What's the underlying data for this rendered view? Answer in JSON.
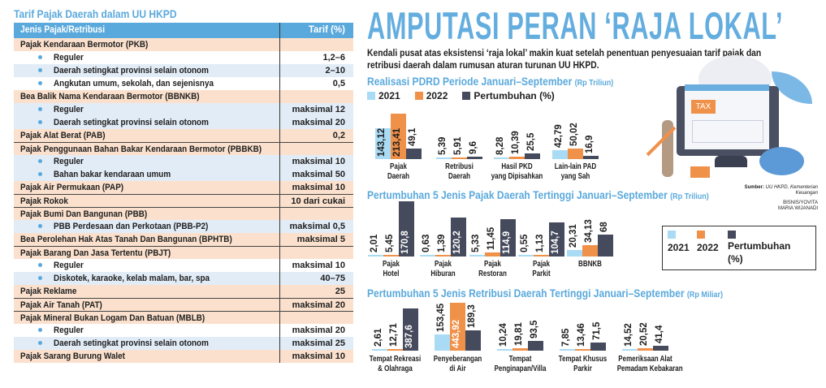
{
  "colors": {
    "y2021": "#a9dbf4",
    "y2022": "#f0914a",
    "growth": "#454a5c",
    "accent": "#5aa9dc",
    "main_row": "#fbe1cd",
    "alt_row": "#e2ecf7"
  },
  "table": {
    "title": "Tarif Pajak Daerah dalam UU HKPD",
    "headers": [
      "Jenis Pajak/Retribusi",
      "Tarif (%)"
    ],
    "rows": [
      {
        "type": "main",
        "label": "Pajak Kendaraan Bermotor (PKB)",
        "value": ""
      },
      {
        "type": "sub",
        "label": "Reguler",
        "value": "1,2–6"
      },
      {
        "type": "alt",
        "label": "Daerah setingkat provinsi selain otonom",
        "value": "2–10"
      },
      {
        "type": "sub",
        "label": "Angkutan umum, sekolah, dan sejenisnya",
        "value": "0,5"
      },
      {
        "type": "main",
        "label": "Bea Balik Nama Kendaraan Bermotor (BBNKB)",
        "value": ""
      },
      {
        "type": "alt",
        "label": "Reguler",
        "value": "maksimal 12"
      },
      {
        "type": "alt",
        "label": "Daerah setingkat provinsi selain otonom",
        "value": "maksimal 20"
      },
      {
        "type": "main",
        "label": "Pajak Alat Berat (PAB)",
        "value": "0,2"
      },
      {
        "type": "main",
        "label": "Pajak Penggunaan Bahan Bakar Kendaraan Bermotor (PBBKB)",
        "value": "",
        "sep": true
      },
      {
        "type": "alt",
        "label": "Reguler",
        "value": "maksimal 10"
      },
      {
        "type": "alt",
        "label": "Bahan bakar kendaraan umum",
        "value": "maksimal 50"
      },
      {
        "type": "main",
        "label": "Pajak Air Permukaan (PAP)",
        "value": "maksimal 10"
      },
      {
        "type": "main",
        "label": "Pajak Rokok",
        "value": "10 dari cukai",
        "sep": true
      },
      {
        "type": "main",
        "label": "Pajak Bumi Dan Bangunan (PBB)",
        "value": "",
        "sep": true
      },
      {
        "type": "alt",
        "label": "PBB Perdesaan dan Perkotaan (PBB-P2)",
        "value": "maksimal 0,5"
      },
      {
        "type": "main",
        "label": "Bea Perolehan Hak Atas Tanah Dan Bangunan (BPHTB)",
        "value": "maksimal 5"
      },
      {
        "type": "main",
        "label": "Pajak Barang Dan Jasa Tertentu (PBJT)",
        "value": "",
        "sep": true
      },
      {
        "type": "sub",
        "label": "Reguler",
        "value": "maksimal 10"
      },
      {
        "type": "alt",
        "label": "Diskotek, karaoke, kelab malam, bar, spa",
        "value": "40–75"
      },
      {
        "type": "main",
        "label": "Pajak Reklame",
        "value": "25"
      },
      {
        "type": "main",
        "label": "Pajak Air Tanah (PAT)",
        "value": "maksimal 20",
        "sep": true
      },
      {
        "type": "main",
        "label": "Pajak Mineral Bukan Logam Dan Batuan (MBLB)",
        "value": "",
        "sep": true
      },
      {
        "type": "sub",
        "label": "Reguler",
        "value": "maksimal 20"
      },
      {
        "type": "alt",
        "label": "Daerah setingkat provinsi selain otonom",
        "value": "maksimal 25"
      },
      {
        "type": "main",
        "label": "Pajak Sarang Burung Walet",
        "value": "maksimal 10"
      }
    ]
  },
  "headline": "AMPUTASI PERAN ‘RAJA LOKAL’",
  "lead": "Kendali pusat atas eksistensi ‘raja lokal’ makin kuat setelah penentuan penyesuaian tarif pajak dan retribusi daerah dalam rumusan aturan turunan UU HKPD.",
  "illustration": {
    "tax_label": "TAX"
  },
  "source": {
    "label": "Sumber:",
    "text": "UU HKPD, Kementerian Keuangan",
    "credit1": "BISNIS/YOVITA",
    "credit2": "MARIA WIJANADI"
  },
  "legend": {
    "y2021": "2021",
    "y2022": "2022",
    "growth1": "Pertumbuhan (%)",
    "growth2a": "Pertumbuhan",
    "growth2b": "(%)"
  },
  "chart_data": [
    {
      "type": "bar",
      "title": "Realisasi PDRD Periode Januari–September",
      "unit": "(Rp Triliun)",
      "legend_placement": "top-left",
      "categories": [
        "Pajak\nDaerah",
        "Retribusi\nDaerah",
        "Hasil PKD\nyang Dipisahkan",
        "Lain-lain PAD\nyang Sah"
      ],
      "series": [
        {
          "name": "2021",
          "values": [
            143.12,
            5.39,
            8.28,
            42.79
          ]
        },
        {
          "name": "2022",
          "values": [
            213.41,
            5.91,
            10.39,
            50.02
          ]
        },
        {
          "name": "Pertumbuhan (%)",
          "values": [
            49.1,
            9.6,
            25.5,
            16.9
          ]
        }
      ],
      "labels": [
        [
          "143,12",
          "213,41",
          "49,1"
        ],
        [
          "5,39",
          "5,91",
          "9,6"
        ],
        [
          "8,28",
          "10,39",
          "25,5"
        ],
        [
          "42,79",
          "50,02",
          "16,9"
        ]
      ]
    },
    {
      "type": "bar",
      "title": "Pertumbuhan 5 Jenis Pajak Daerah Tertinggi Januari–September",
      "unit": "(Rp Triliun)",
      "legend_placement": "right",
      "categories": [
        "Pajak\nHotel",
        "Pajak\nHiburan",
        "Pajak\nRestoran",
        "Pajak\nParkit",
        "BBNKB"
      ],
      "series": [
        {
          "name": "2021",
          "values": [
            2.01,
            0.63,
            5.33,
            0.55,
            20.31
          ]
        },
        {
          "name": "2022",
          "values": [
            5.45,
            1.39,
            11.45,
            1.13,
            34.13
          ]
        },
        {
          "name": "Pertumbuhan (%)",
          "values": [
            170.8,
            120.2,
            114.9,
            104.7,
            68
          ]
        }
      ],
      "labels": [
        [
          "2,01",
          "5,45",
          "170,8"
        ],
        [
          "0,63",
          "1,39",
          "120,2"
        ],
        [
          "5,33",
          "11,45",
          "114,9"
        ],
        [
          "0,55",
          "1,13",
          "104,7"
        ],
        [
          "20,31",
          "34,13",
          "68"
        ]
      ]
    },
    {
      "type": "bar",
      "title": "Pertumbuhan 5 Jenis Retribusi Daerah Tertinggi Januari–September",
      "unit": "(Rp Miliar)",
      "categories": [
        "Tempat Rekreasi\n& Olahraga",
        "Penyeberangan\ndi Air",
        "Tempat\nPenginapan/Villa",
        "Tempat Khusus\nParkir",
        "Pemeriksaan Alat\nPemadam Kebakaran"
      ],
      "series": [
        {
          "name": "2021",
          "values": [
            2.61,
            153.45,
            10.24,
            7.85,
            14.52
          ]
        },
        {
          "name": "2022",
          "values": [
            12.71,
            443.92,
            19.81,
            13.46,
            20.52
          ]
        },
        {
          "name": "Pertumbuhan (%)",
          "values": [
            387.6,
            189.3,
            93.5,
            71.5,
            41.4
          ]
        }
      ],
      "labels": [
        [
          "2,61",
          "12,71",
          "387,6"
        ],
        [
          "153,45",
          "443,92",
          "189,3"
        ],
        [
          "10,24",
          "19,81",
          "93,5"
        ],
        [
          "7,85",
          "13,46",
          "71,5"
        ],
        [
          "14,52",
          "20,52",
          "41,4"
        ]
      ]
    }
  ]
}
